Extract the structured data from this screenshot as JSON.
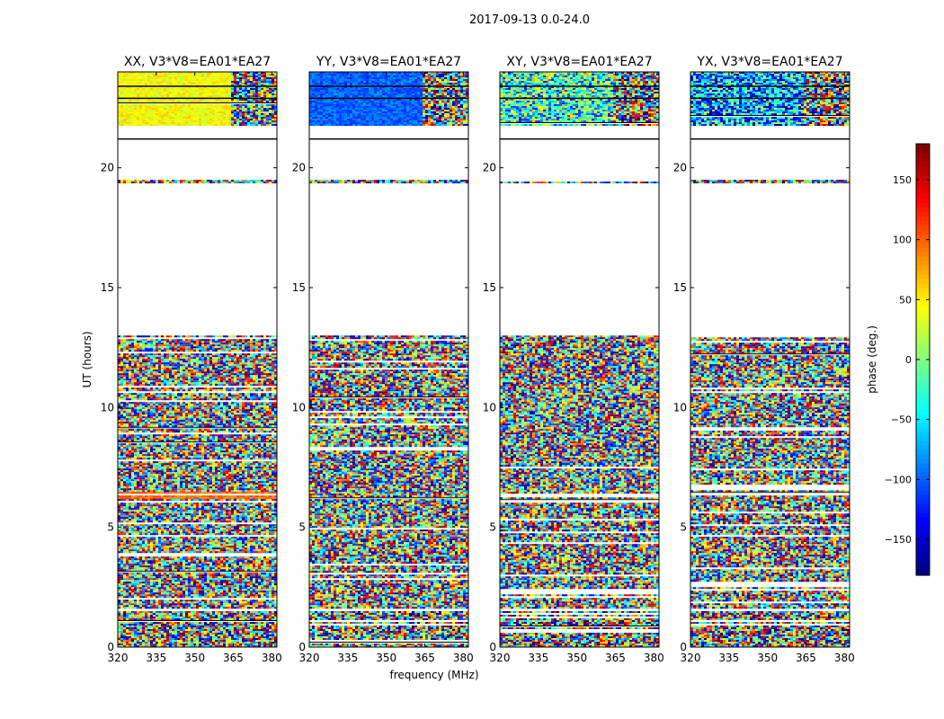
{
  "suptitle": "2017-09-13 0.0-24.0",
  "chart_data": {
    "type": "heatmap",
    "panels": [
      {
        "title": "XX, V3*V8=EA01*EA27",
        "polarization": "XX"
      },
      {
        "title": "YY, V3*V8=EA01*EA27",
        "polarization": "YY"
      },
      {
        "title": "XY, V3*V8=EA01*EA27",
        "polarization": "XY"
      },
      {
        "title": "YX, V3*V8=EA01*EA27",
        "polarization": "YX"
      }
    ],
    "xlabel": "frequency (MHz)",
    "ylabel": "UT (hours)",
    "xlim": [
      320,
      382
    ],
    "ylim": [
      0,
      24
    ],
    "xticks": [
      320,
      335,
      350,
      365,
      380
    ],
    "yticks": [
      0,
      5,
      10,
      15,
      20
    ],
    "colorbar": {
      "label": "phase (deg.)",
      "range": [
        -180,
        180
      ],
      "ticks": [
        -150,
        -100,
        -50,
        0,
        50,
        100,
        150
      ],
      "ticklabels": [
        "−150",
        "−100",
        "−50",
        "0",
        "50",
        "100",
        "150"
      ],
      "colormap": "jet"
    },
    "data_bands_ut": [
      {
        "from": 0.0,
        "to": 1.5,
        "kind": "noise"
      },
      {
        "from": 1.6,
        "to": 13.0,
        "kind": "noise"
      },
      {
        "from": 19.4,
        "to": 19.5,
        "kind": "noise"
      },
      {
        "from": 21.8,
        "to": 24.0,
        "kind": "structured"
      }
    ],
    "flag_transition_mhz": 364
  }
}
